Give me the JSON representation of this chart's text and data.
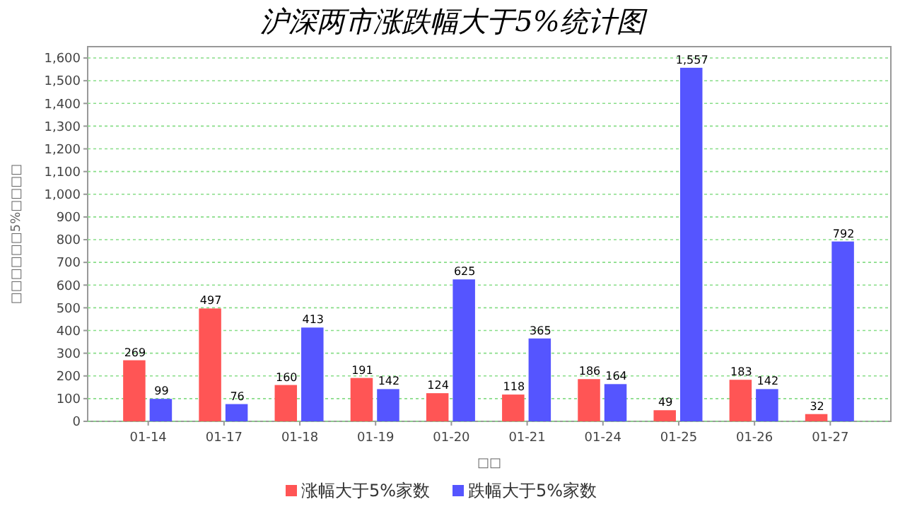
{
  "chart_data": {
    "type": "bar",
    "title": "沪深两市涨跌幅大于5%统计图",
    "xlabel": "□□",
    "ylabel": "□□□□□□5%□□□□",
    "categories": [
      "01-14",
      "01-17",
      "01-18",
      "01-19",
      "01-20",
      "01-21",
      "01-24",
      "01-25",
      "01-26",
      "01-27"
    ],
    "series": [
      {
        "name": "涨幅大于5%家数",
        "color": "#ff5555",
        "values": [
          269,
          497,
          160,
          191,
          124,
          118,
          186,
          49,
          183,
          32
        ],
        "value_labels": [
          "269",
          "497",
          "160",
          "191",
          "124",
          "118",
          "186",
          "49",
          "183",
          "32"
        ]
      },
      {
        "name": "跌幅大于5%家数",
        "color": "#5555ff",
        "values": [
          99,
          76,
          413,
          142,
          625,
          365,
          164,
          1557,
          142,
          792
        ],
        "value_labels": [
          "99",
          "76",
          "413",
          "142",
          "625",
          "365",
          "164",
          "1,557",
          "142",
          "792"
        ]
      }
    ],
    "ylim": [
      0,
      1650
    ],
    "yticks": [
      0,
      100,
      200,
      300,
      400,
      500,
      600,
      700,
      800,
      900,
      {
        "value": 1000,
        "label": "1,000"
      },
      {
        "value": 1100,
        "label": "1,100"
      },
      {
        "value": 1200,
        "label": "1,200"
      },
      {
        "value": 1300,
        "label": "1,300"
      },
      {
        "value": 1400,
        "label": "1,400"
      },
      {
        "value": 1500,
        "label": "1,500"
      },
      {
        "value": 1600,
        "label": "1,600"
      }
    ],
    "grid": "y",
    "legend": "bottom"
  }
}
